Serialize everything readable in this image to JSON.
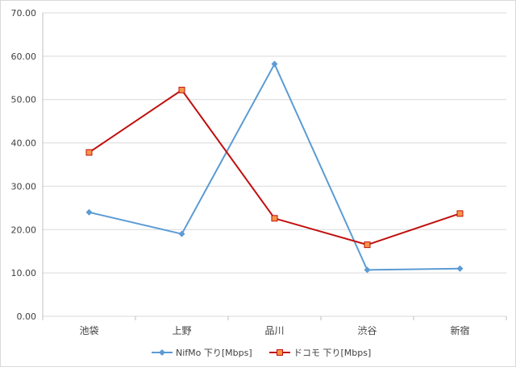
{
  "chart_data": {
    "type": "line",
    "categories": [
      "池袋",
      "上野",
      "品川",
      "渋谷",
      "新宿"
    ],
    "y_ticks": [
      "0.00",
      "10.00",
      "20.00",
      "30.00",
      "40.00",
      "50.00",
      "60.00",
      "70.00"
    ],
    "ylim": [
      0,
      70
    ],
    "grid": true,
    "legend_position": "bottom",
    "series": [
      {
        "name": "NifMo 下り[Mbps]",
        "values": [
          24.0,
          19.0,
          58.2,
          10.7,
          11.0
        ],
        "color": "#5b9bd5",
        "marker": "diamond"
      },
      {
        "name": "ドコモ 下り[Mbps]",
        "values": [
          37.8,
          52.2,
          22.6,
          16.5,
          23.7
        ],
        "color": "#c0100e",
        "marker": "square",
        "marker_fill": "#f79646"
      }
    ]
  }
}
